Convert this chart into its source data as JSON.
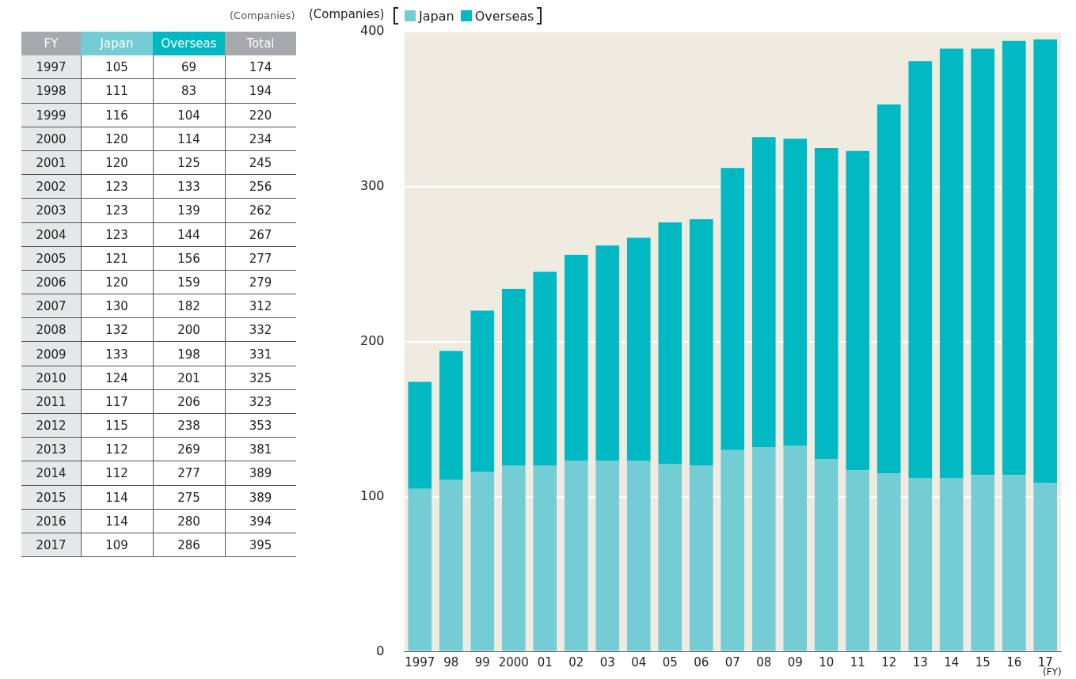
{
  "chart_data": [
    {
      "type": "heatmap",
      "title": "(Companies)",
      "ylabel": "FY",
      "data_labels": true,
      "categories": [
        "Japan",
        "Overseas",
        "Total"
      ],
      "y_categories": [
        "1997",
        "1998",
        "1999",
        "2000",
        "2001",
        "2002",
        "2003",
        "2004",
        "2005",
        "2006",
        "2007",
        "2008",
        "2009",
        "2010",
        "2011",
        "2012",
        "2013",
        "2014",
        "2015",
        "2016",
        "2017"
      ],
      "cells": [
        [
          105,
          69,
          174
        ],
        [
          111,
          83,
          194
        ],
        [
          116,
          104,
          220
        ],
        [
          120,
          114,
          234
        ],
        [
          120,
          125,
          245
        ],
        [
          123,
          133,
          256
        ],
        [
          123,
          139,
          262
        ],
        [
          123,
          144,
          267
        ],
        [
          121,
          156,
          277
        ],
        [
          120,
          159,
          279
        ],
        [
          130,
          182,
          312
        ],
        [
          132,
          200,
          332
        ],
        [
          133,
          198,
          331
        ],
        [
          124,
          201,
          325
        ],
        [
          117,
          206,
          323
        ],
        [
          115,
          238,
          353
        ],
        [
          112,
          269,
          381
        ],
        [
          112,
          277,
          389
        ],
        [
          114,
          275,
          389
        ],
        [
          114,
          280,
          394
        ],
        [
          109,
          286,
          395
        ]
      ]
    },
    {
      "type": "bar",
      "stacked": true,
      "ylabel": "(Companies)",
      "xlabel": "(FY)",
      "categories": [
        "1997",
        "98",
        "99",
        "2000",
        "01",
        "02",
        "03",
        "04",
        "05",
        "06",
        "07",
        "08",
        "09",
        "10",
        "11",
        "12",
        "13",
        "14",
        "15",
        "16",
        "17"
      ],
      "series": [
        {
          "name": "Japan",
          "color": "#74ccd5",
          "values": [
            105,
            111,
            116,
            120,
            120,
            123,
            123,
            123,
            121,
            120,
            130,
            132,
            133,
            124,
            117,
            115,
            112,
            112,
            114,
            114,
            109
          ]
        },
        {
          "name": "Overseas",
          "color": "#00b9c3",
          "values": [
            69,
            83,
            104,
            114,
            125,
            133,
            139,
            144,
            156,
            159,
            182,
            200,
            198,
            201,
            206,
            238,
            269,
            277,
            275,
            280,
            286
          ]
        }
      ],
      "ylim": [
        0,
        400
      ],
      "yticks": [
        0,
        100,
        200,
        300,
        400
      ],
      "grid": "y",
      "legend": "top left"
    }
  ]
}
